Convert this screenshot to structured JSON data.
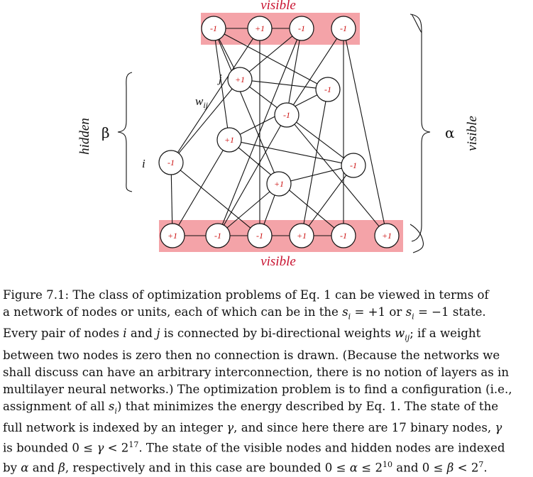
{
  "top_label": "visible",
  "bottom_label": "visible",
  "left_side_label": "hidden",
  "left_greek": "β",
  "right_side_label": "visible",
  "right_greek": "α",
  "node_label_i": "i",
  "node_label_j": "j",
  "weight_label": "w",
  "weight_subscript": "ij",
  "top_nodes": [
    "-1",
    "+1",
    "-1",
    "-1"
  ],
  "bottom_nodes": [
    "+1",
    "-1",
    "-1",
    "+1",
    "-1",
    "+1"
  ],
  "hidden_nodes": [
    "+1",
    "-1",
    "-1",
    "+1",
    "-1",
    "-1",
    "+1"
  ],
  "colors": {
    "band": "#f4a3a8",
    "node_text": "#cc1111",
    "title_text": "#c8102e"
  },
  "caption": {
    "line1": "Figure 7.1: The class of optimization problems of Eq. 1 can be viewed in terms of",
    "line2a": "a network of nodes or units, each of which can be in the ",
    "line2_m1": "s",
    "line2_m1sub": "i",
    "line2_m1val": " = +1",
    "line2b": " or ",
    "line2_m2": "s",
    "line2_m2sub": "i",
    "line2_m2val": " = −1",
    "line2c": " state.",
    "line3a": "Every pair of nodes ",
    "line3_i": "i",
    "line3b": " and ",
    "line3_j": "j",
    "line3c": " is connected by bi-directional weights ",
    "line3_w": "w",
    "line3_wsub": "ij",
    "line3d": "; if a weight",
    "line4": "between two nodes is zero then no connection is drawn. (Because the networks we",
    "line5": "shall discuss can have an arbitrary interconnection, there is no notion of layers as in",
    "line6": "multilayer neural networks.) The optimization problem is to find a configuration (i.e.,",
    "line7a": "assignment of all ",
    "line7_s": "s",
    "line7_ssub": "i",
    "line7b": ") that minimizes the energy described by Eq. 1. The state of the",
    "line8a": "full network is indexed by an integer ",
    "line8_g": "γ",
    "line8b": ", and since here there are 17 binary nodes, ",
    "line8_g2": "γ",
    "line9a": "is bounded 0 ≤ ",
    "line9_g": "γ",
    "line9b": " < 2",
    "line9_exp": "17",
    "line9c": ". The state of the visible nodes and hidden nodes are indexed",
    "line10a": "by ",
    "line10_a": "α",
    "line10b": " and ",
    "line10_b": "β",
    "line10c": ", respectively and in this case are bounded 0 ≤ ",
    "line10_a2": "α",
    "line10d": " ≤ 2",
    "line10_exp1": "10",
    "line10e": " and 0 ≤ ",
    "line10_b2": "β",
    "line10f": " < 2",
    "line10_exp2": "7",
    "line10g": "."
  }
}
